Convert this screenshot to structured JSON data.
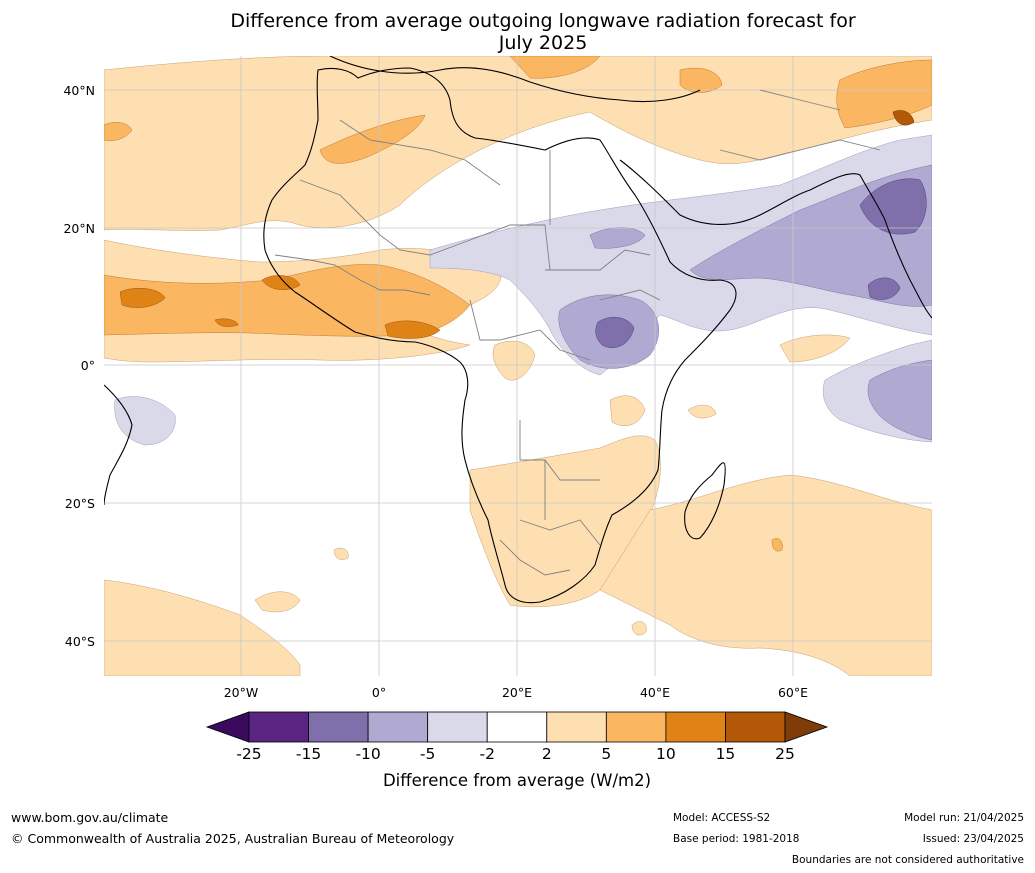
{
  "title_line1": "Difference from average outgoing longwave radiation forecast for",
  "title_line2": "July 2025",
  "lat_labels": [
    "40°N",
    "20°N",
    "0°",
    "20°S",
    "40°S"
  ],
  "lon_labels": [
    "20°W",
    "0°",
    "20°E",
    "40°E",
    "60°E"
  ],
  "colorbar": {
    "title": "Difference from average (W/m2)",
    "ticks": [
      "-25",
      "-15",
      "-10",
      "-5",
      "-2",
      "2",
      "5",
      "10",
      "15",
      "25"
    ],
    "colors": [
      "#3a0a5e",
      "#5a2483",
      "#7f6fab",
      "#b0a9d2",
      "#d9d9ea",
      "#ffffff",
      "#fddfb2",
      "#fbb662",
      "#e08316",
      "#b25807",
      "#7f3b08"
    ]
  },
  "footer": {
    "website": "www.bom.gov.au/climate",
    "copyright": "© Commonwealth of Australia 2025, Australian Bureau of Meteorology",
    "model": "Model: ACCESS-S2",
    "base_period": "Base period: 1981-2018",
    "model_run": "Model run: 21/04/2025",
    "issued": "Issued: 23/04/2025",
    "boundaries_note": "Boundaries are not considered authoritative"
  }
}
